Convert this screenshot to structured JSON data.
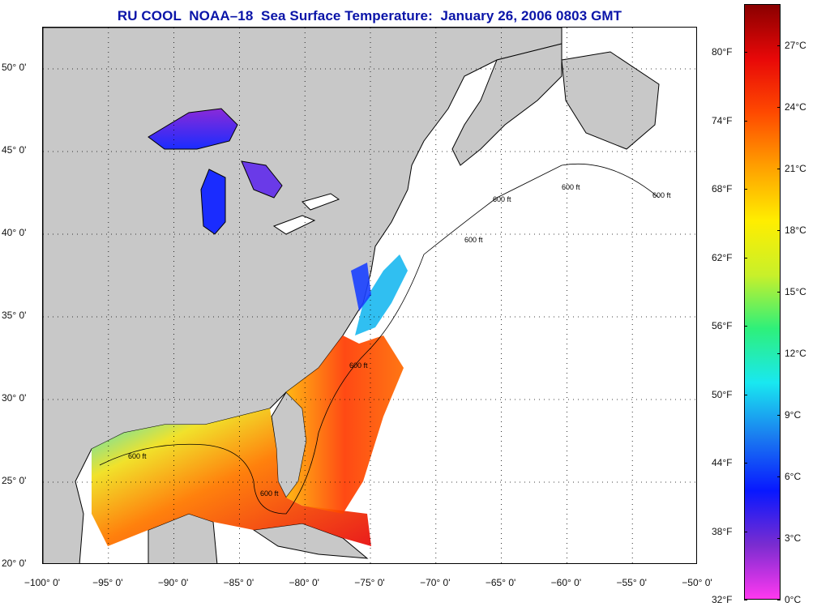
{
  "title": "RU COOL  NOAA–18  Sea Surface Temperature:  January 26, 2006 0803 GMT",
  "map": {
    "lon_range": [
      -100,
      -50
    ],
    "lat_range": [
      20,
      52.5
    ],
    "graticule": "dotted",
    "land_color": "#c8c8c8",
    "no_data_color": "#ffffff",
    "lat_labels": [
      "50° 0'",
      "45° 0'",
      "40° 0'",
      "35° 0'",
      "30° 0'",
      "25° 0'",
      "20° 0'"
    ],
    "lat_values": [
      50,
      45,
      40,
      35,
      30,
      25,
      20
    ],
    "lon_labels": [
      "−100° 0'",
      "−95° 0'",
      "−90° 0'",
      "−85° 0'",
      "−80° 0'",
      "−75° 0'",
      "−70° 0'",
      "−65° 0'",
      "−60° 0'",
      "−55° 0'",
      "−50° 0'"
    ],
    "lon_values": [
      -100,
      -95,
      -90,
      -85,
      -80,
      -75,
      -70,
      -65,
      -60,
      -55,
      -50
    ],
    "isobath_labels": [
      "600 ft",
      "600 ft",
      "600 ft",
      "600 ft",
      "600 ft",
      "600 ft",
      "600 ft"
    ]
  },
  "colorbar": {
    "fahrenheit_labels": [
      "80°F",
      "74°F",
      "68°F",
      "62°F",
      "56°F",
      "50°F",
      "44°F",
      "38°F",
      "32°F"
    ],
    "fahrenheit_values": [
      80,
      74,
      68,
      62,
      56,
      50,
      44,
      38,
      32
    ],
    "celsius_labels": [
      "27°C",
      "24°C",
      "21°C",
      "18°C",
      "15°C",
      "12°C",
      "9°C",
      "6°C",
      "3°C",
      "0°C"
    ],
    "celsius_values": [
      27,
      24,
      21,
      18,
      15,
      12,
      9,
      6,
      3,
      0
    ],
    "range_c": [
      0,
      29
    ],
    "colors": [
      "#ff38f0",
      "#7a2cd0",
      "#0818ff",
      "#1a7cf0",
      "#19e8f0",
      "#2ef07a",
      "#c8f02a",
      "#ffee00",
      "#ffa000",
      "#ff4a00",
      "#e80808",
      "#8a0000"
    ]
  }
}
